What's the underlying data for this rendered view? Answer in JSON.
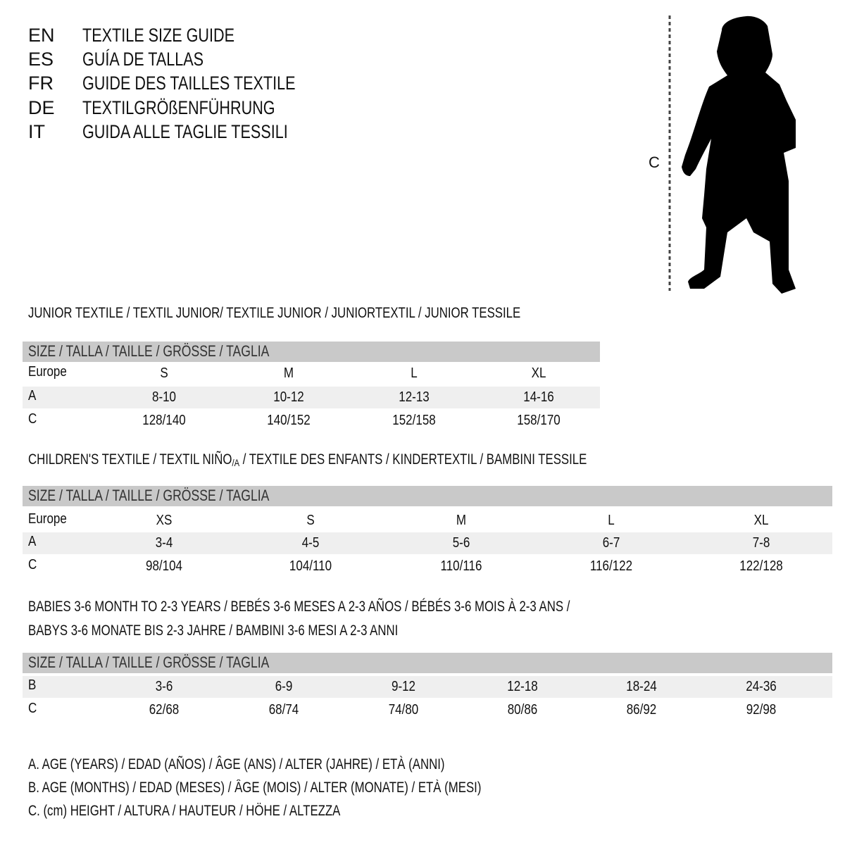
{
  "languages": [
    {
      "code": "EN",
      "text": "TEXTILE SIZE GUIDE"
    },
    {
      "code": "ES",
      "text": "GUÍA DE TALLAS"
    },
    {
      "code": "FR",
      "text": "GUIDE DES TAILLES TEXTILE"
    },
    {
      "code": "DE",
      "text": "TEXTILGRÖßENFÜHRUNG"
    },
    {
      "code": "IT",
      "text": "GUIDA ALLE TAGLIE TESSILI"
    }
  ],
  "figure": {
    "measure_label": "C",
    "icon": "child-silhouette"
  },
  "size_header": "SIZE / TALLA / TAILLE / GRÖSSE / TAGLIA",
  "junior": {
    "title": "JUNIOR TEXTILE / TEXTIL JUNIOR/ TEXTILE JUNIOR / JUNIORTEXTIL / JUNIOR TESSILE",
    "rows": [
      {
        "label": "Europe",
        "values": [
          "S",
          "M",
          "L",
          "XL"
        ]
      },
      {
        "label": "A",
        "values": [
          "8-10",
          "10-12",
          "12-13",
          "14-16"
        ]
      },
      {
        "label": "C",
        "values": [
          "128/140",
          "140/152",
          "152/158",
          "158/170"
        ]
      }
    ]
  },
  "children": {
    "title_pre": "CHILDREN'S TEXTILE / TEXTIL NIÑO",
    "title_sub": "/A",
    "title_post": " / TEXTILE DES ENFANTS / KINDERTEXTIL / BAMBINI TESSILE",
    "rows": [
      {
        "label": "Europe",
        "values": [
          "XS",
          "S",
          "M",
          "L",
          "XL"
        ]
      },
      {
        "label": "A",
        "values": [
          "3-4",
          "4-5",
          "5-6",
          "6-7",
          "7-8"
        ]
      },
      {
        "label": "C",
        "values": [
          "98/104",
          "104/110",
          "110/116",
          "116/122",
          "122/128"
        ]
      }
    ]
  },
  "babies": {
    "title_line1": "BABIES 3-6 MONTH TO 2-3 YEARS / BEBÉS 3-6 MESES A 2-3 AÑOS / BÉBÉS 3-6 MOIS À 2-3 ANS /",
    "title_line2": "BABYS 3-6 MONATE BIS 2-3 JAHRE / BAMBINI 3-6 MESI A 2-3 ANNI",
    "rows": [
      {
        "label": "B",
        "values": [
          "3-6",
          "6-9",
          "9-12",
          "12-18",
          "18-24",
          "24-36"
        ]
      },
      {
        "label": "C",
        "values": [
          "62/68",
          "68/74",
          "74/80",
          "80/86",
          "86/92",
          "92/98"
        ]
      }
    ]
  },
  "legend": [
    "A. AGE (YEARS) / EDAD (AÑOS) / ÂGE (ANS) / ALTER (JAHRE) / ETÀ (ANNI)",
    "B. AGE (MONTHS) / EDAD (MESES) / ÂGE (MOIS) / ALTER (MONATE) / ETÀ (MESI)",
    "C. (cm) HEIGHT / ALTURA / HAUTEUR / HÖHE / ALTEZZA"
  ],
  "colors": {
    "header_bar": "#c9c9c9",
    "alt_row": "#efefef"
  }
}
